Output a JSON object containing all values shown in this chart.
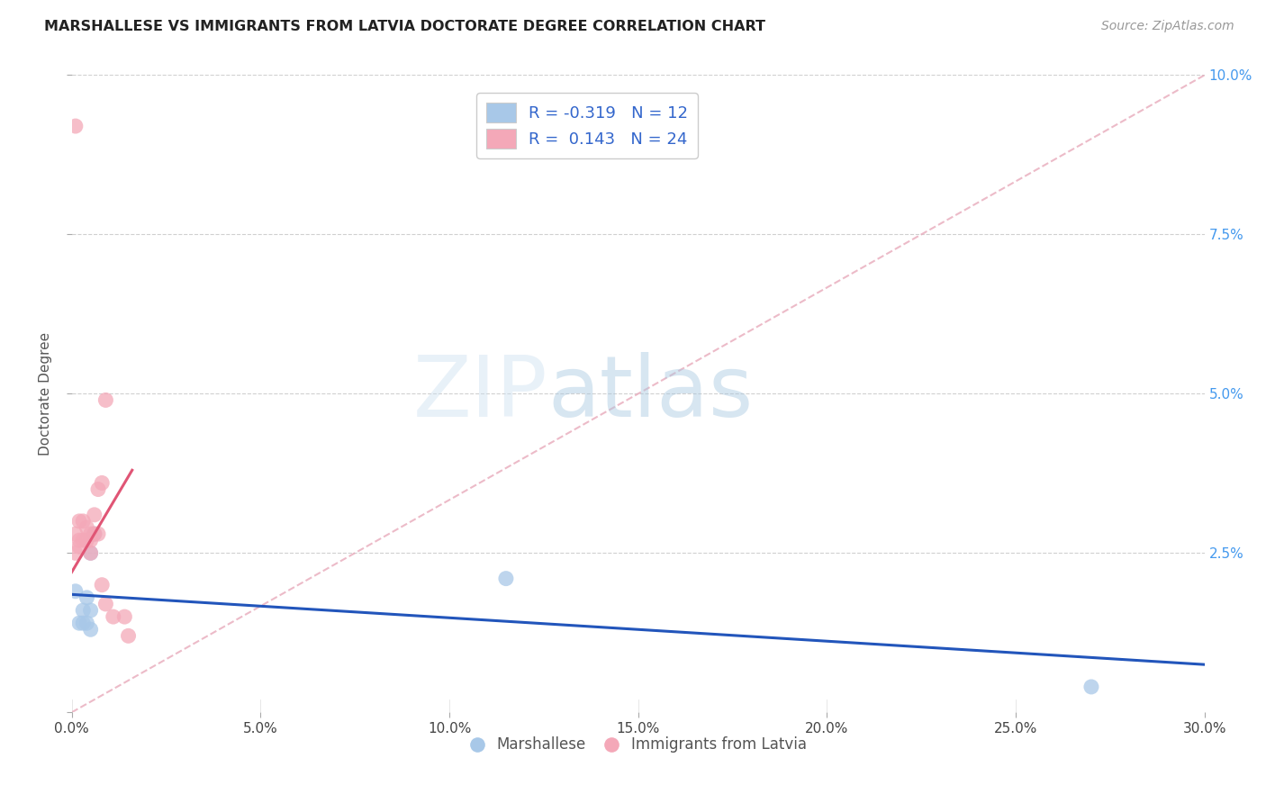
{
  "title": "MARSHALLESE VS IMMIGRANTS FROM LATVIA DOCTORATE DEGREE CORRELATION CHART",
  "source": "Source: ZipAtlas.com",
  "ylabel": "Doctorate Degree",
  "xlim": [
    0.0,
    0.3
  ],
  "ylim": [
    0.0,
    0.1
  ],
  "xticks": [
    0.0,
    0.05,
    0.1,
    0.15,
    0.2,
    0.25,
    0.3
  ],
  "xticklabels": [
    "0.0%",
    "5.0%",
    "10.0%",
    "15.0%",
    "20.0%",
    "25.0%",
    "30.0%"
  ],
  "yticks": [
    0.0,
    0.025,
    0.05,
    0.075,
    0.1
  ],
  "yticklabels": [
    "",
    "2.5%",
    "5.0%",
    "7.5%",
    "10.0%"
  ],
  "blue_R": -0.319,
  "blue_N": 12,
  "pink_R": 0.143,
  "pink_N": 24,
  "blue_color": "#a8c8e8",
  "pink_color": "#f4a8b8",
  "blue_line_color": "#2255bb",
  "pink_line_color": "#e05575",
  "pink_dashed_color": "#e8aabb",
  "watermark_zip": "ZIP",
  "watermark_atlas": "atlas",
  "blue_scatter_x": [
    0.001,
    0.003,
    0.003,
    0.004,
    0.004,
    0.005,
    0.005,
    0.005,
    0.006,
    0.002,
    0.115,
    0.27
  ],
  "blue_scatter_y": [
    0.019,
    0.016,
    0.014,
    0.018,
    0.014,
    0.016,
    0.013,
    0.025,
    0.028,
    0.014,
    0.021,
    0.004
  ],
  "pink_scatter_x": [
    0.001,
    0.001,
    0.001,
    0.002,
    0.002,
    0.002,
    0.003,
    0.003,
    0.004,
    0.004,
    0.005,
    0.005,
    0.005,
    0.006,
    0.006,
    0.007,
    0.007,
    0.008,
    0.008,
    0.009,
    0.009,
    0.011,
    0.014,
    0.015
  ],
  "pink_scatter_y": [
    0.092,
    0.028,
    0.025,
    0.03,
    0.027,
    0.026,
    0.03,
    0.027,
    0.029,
    0.027,
    0.025,
    0.027,
    0.028,
    0.031,
    0.028,
    0.028,
    0.035,
    0.036,
    0.02,
    0.017,
    0.049,
    0.015,
    0.015,
    0.012
  ],
  "blue_trend_x": [
    0.0,
    0.3
  ],
  "blue_trend_y": [
    0.0185,
    0.0075
  ],
  "pink_solid_trend_x": [
    0.0,
    0.016
  ],
  "pink_solid_trend_y": [
    0.022,
    0.038
  ],
  "pink_dashed_trend_x": [
    0.0,
    0.3
  ],
  "pink_dashed_trend_y": [
    0.0,
    0.1
  ]
}
